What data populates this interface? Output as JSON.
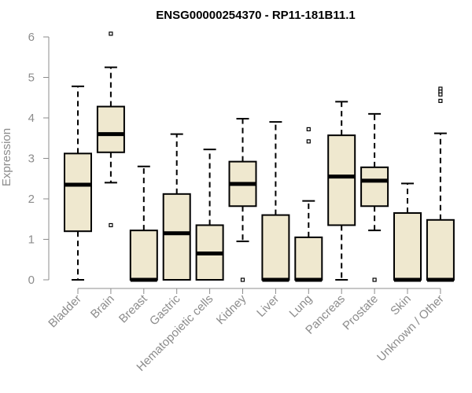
{
  "chart_data": {
    "type": "boxplot",
    "title": "ENSG00000254370 - RP11-181B11.1",
    "ylabel": "Expression",
    "xlabel": "",
    "ylim": [
      0,
      6
    ],
    "yticks": [
      "0",
      "1",
      "2",
      "3",
      "4",
      "5",
      "6"
    ],
    "grid": false,
    "colors": {
      "box_fill": "#efe8cf",
      "stroke": "#000000",
      "axis_text": "#8c8c8c"
    },
    "categories": [
      "Bladder",
      "Brain",
      "Breast",
      "Gastric",
      "Hematopoietic cells",
      "Kidney",
      "Liver",
      "Lung",
      "Pancreas",
      "Prostate",
      "Skin",
      "Unknown / Other"
    ],
    "boxes": [
      {
        "whisker_low": 0.0,
        "q1": 1.2,
        "median": 2.35,
        "q3": 3.12,
        "whisker_high": 4.78,
        "outliers": []
      },
      {
        "whisker_low": 2.4,
        "q1": 3.15,
        "median": 3.6,
        "q3": 4.28,
        "whisker_high": 5.25,
        "outliers": [
          6.08,
          1.35
        ]
      },
      {
        "whisker_low": 0.0,
        "q1": 0.0,
        "median": 0.0,
        "q3": 1.22,
        "whisker_high": 2.8,
        "outliers": []
      },
      {
        "whisker_low": 0.0,
        "q1": 0.0,
        "median": 1.15,
        "q3": 2.12,
        "whisker_high": 3.6,
        "outliers": []
      },
      {
        "whisker_low": 0.0,
        "q1": 0.0,
        "median": 0.65,
        "q3": 1.35,
        "whisker_high": 3.22,
        "outliers": []
      },
      {
        "whisker_low": 0.95,
        "q1": 1.82,
        "median": 2.37,
        "q3": 2.92,
        "whisker_high": 3.98,
        "outliers": [
          0.0
        ]
      },
      {
        "whisker_low": 0.0,
        "q1": 0.0,
        "median": 0.0,
        "q3": 1.6,
        "whisker_high": 3.9,
        "outliers": []
      },
      {
        "whisker_low": 0.0,
        "q1": 0.0,
        "median": 0.0,
        "q3": 1.05,
        "whisker_high": 1.95,
        "outliers": [
          3.72,
          3.42
        ]
      },
      {
        "whisker_low": 0.0,
        "q1": 1.35,
        "median": 2.55,
        "q3": 3.57,
        "whisker_high": 4.4,
        "outliers": []
      },
      {
        "whisker_low": 1.22,
        "q1": 1.82,
        "median": 2.45,
        "q3": 2.78,
        "whisker_high": 4.1,
        "outliers": [
          0.0
        ]
      },
      {
        "whisker_low": 0.0,
        "q1": 0.0,
        "median": 0.0,
        "q3": 1.65,
        "whisker_high": 2.38,
        "outliers": []
      },
      {
        "whisker_low": 0.0,
        "q1": 0.0,
        "median": 0.0,
        "q3": 1.48,
        "whisker_high": 3.62,
        "outliers": [
          4.72,
          4.65,
          4.58,
          4.42
        ]
      }
    ]
  }
}
